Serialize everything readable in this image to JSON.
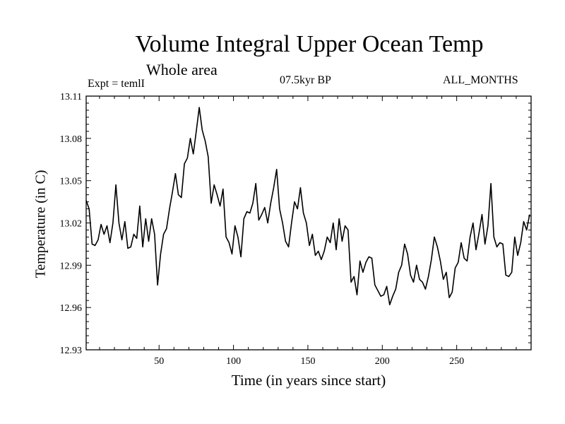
{
  "chart_data": {
    "type": "line",
    "title": "Volume Integral Upper Ocean Temp",
    "subtitle": "Whole area",
    "left_label": "Expt = temlI",
    "center_label": "07.5kyr BP",
    "right_label": "ALL_MONTHS",
    "xlabel": "Time (in years since start)",
    "ylabel": "Temperature (in C)",
    "xlim": [
      1,
      300
    ],
    "ylim": [
      12.93,
      13.11
    ],
    "xticks": [
      50,
      100,
      150,
      200,
      250
    ],
    "yticks": [
      12.93,
      12.96,
      12.99,
      13.02,
      13.05,
      13.08,
      13.11
    ],
    "ytick_labels": [
      "12.93",
      "12.96",
      "12.99",
      "13.02",
      "13.05",
      "13.08",
      "13.11"
    ],
    "series": [
      {
        "name": "temlI",
        "x": [
          1,
          3,
          5,
          7,
          9,
          11,
          13,
          15,
          17,
          19,
          21,
          23,
          25,
          27,
          29,
          31,
          33,
          35,
          37,
          39,
          41,
          43,
          45,
          47,
          49,
          51,
          53,
          55,
          57,
          59,
          61,
          63,
          65,
          67,
          69,
          71,
          73,
          75,
          77,
          79,
          81,
          83,
          85,
          87,
          89,
          91,
          93,
          95,
          97,
          99,
          101,
          103,
          105,
          107,
          109,
          111,
          113,
          115,
          117,
          119,
          121,
          123,
          125,
          127,
          129,
          131,
          133,
          135,
          137,
          139,
          141,
          143,
          145,
          147,
          149,
          151,
          153,
          155,
          157,
          159,
          161,
          163,
          165,
          167,
          169,
          171,
          173,
          175,
          177,
          179,
          181,
          183,
          185,
          187,
          189,
          191,
          193,
          195,
          197,
          199,
          201,
          203,
          205,
          207,
          209,
          211,
          213,
          215,
          217,
          219,
          221,
          223,
          225,
          227,
          229,
          231,
          233,
          235,
          237,
          239,
          241,
          243,
          245,
          247,
          249,
          251,
          253,
          255,
          257,
          259,
          261,
          263,
          265,
          267,
          269,
          271,
          273,
          275,
          277,
          279,
          281,
          283,
          285,
          287,
          289,
          291,
          293,
          295,
          297,
          299
        ],
        "values": [
          13.036,
          13.03,
          13.005,
          13.004,
          13.008,
          13.019,
          13.012,
          13.018,
          13.006,
          13.02,
          13.047,
          13.02,
          13.008,
          13.021,
          13.002,
          13.003,
          13.012,
          13.009,
          13.032,
          13.003,
          13.023,
          13.007,
          13.023,
          13.012,
          12.976,
          12.998,
          13.012,
          13.016,
          13.03,
          13.042,
          13.055,
          13.04,
          13.038,
          13.062,
          13.066,
          13.08,
          13.069,
          13.085,
          13.102,
          13.086,
          13.078,
          13.067,
          13.034,
          13.047,
          13.04,
          13.032,
          13.044,
          13.01,
          13.006,
          12.998,
          13.018,
          13.01,
          12.996,
          13.023,
          13.028,
          13.027,
          13.034,
          13.048,
          13.022,
          13.026,
          13.031,
          13.02,
          13.034,
          13.045,
          13.058,
          13.03,
          13.02,
          13.007,
          13.003,
          13.02,
          13.035,
          13.03,
          13.045,
          13.027,
          13.02,
          13.004,
          13.012,
          12.997,
          13.0,
          12.994,
          13.0,
          13.01,
          13.006,
          13.02,
          13.001,
          13.023,
          13.007,
          13.018,
          13.015,
          12.978,
          12.982,
          12.969,
          12.993,
          12.985,
          12.992,
          12.996,
          12.995,
          12.976,
          12.972,
          12.968,
          12.969,
          12.975,
          12.962,
          12.968,
          12.973,
          12.985,
          12.99,
          13.005,
          12.998,
          12.983,
          12.978,
          12.99,
          12.98,
          12.978,
          12.973,
          12.982,
          12.994,
          13.01,
          13.003,
          12.993,
          12.98,
          12.985,
          12.967,
          12.971,
          12.988,
          12.992,
          13.006,
          12.995,
          12.993,
          13.01,
          13.02,
          13.001,
          13.013,
          13.026,
          13.005,
          13.018,
          13.048,
          13.01,
          13.003,
          13.006,
          13.005,
          12.983,
          12.982,
          12.985,
          13.01,
          12.997,
          13.006,
          13.021,
          13.015,
          13.026
        ]
      }
    ]
  }
}
